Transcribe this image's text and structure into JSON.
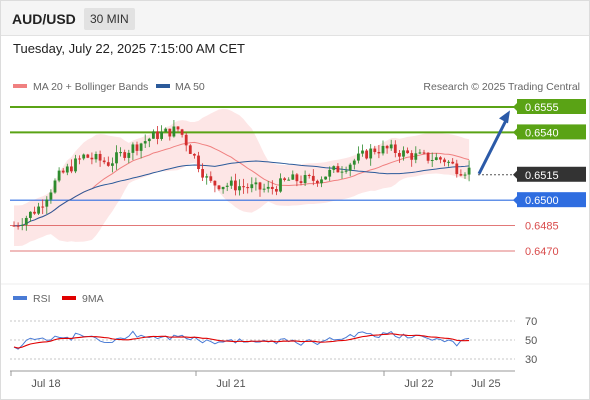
{
  "header": {
    "symbol": "AUD/USD",
    "timeframe": "30 MIN"
  },
  "datetime": "Tuesday, July 22, 2025 7:15:00 AM CET",
  "legend": {
    "ma20_label": "MA 20 + Bollinger Bands",
    "ma20_color": "#f08080",
    "ma50_label": "MA 50",
    "ma50_color": "#2b5a9a",
    "credit": "Research © 2025 Trading Central"
  },
  "rsi_legend": {
    "rsi_label": "RSI",
    "rsi_color": "#4a7bd5",
    "ma_label": "9MA",
    "ma_color": "#e00000"
  },
  "colors": {
    "bull": "#2e8b2e",
    "bear": "#d32f2f",
    "target": "#5aa315",
    "current": "#333333",
    "pivot": "#2f6de0",
    "support": "#d94c4c",
    "arrow": "#2b5aa8",
    "band_fill": "#fde6e6"
  },
  "chart_data": [
    {
      "type": "candlestick",
      "title": "AUD/USD",
      "timeframe": "30 MIN",
      "ylim": [
        0.6445,
        0.6565
      ],
      "x_tick_labels": [
        "Jul 18",
        "Jul 21",
        "Jul 22",
        "Jul 25"
      ],
      "current_price": 0.6515,
      "levels": [
        {
          "label": "0.6555",
          "value": 0.6555,
          "kind": "target"
        },
        {
          "label": "0.6540",
          "value": 0.654,
          "kind": "target"
        },
        {
          "label": "0.6515",
          "value": 0.6515,
          "kind": "current"
        },
        {
          "label": "0.6500",
          "value": 0.65,
          "kind": "pivot"
        },
        {
          "label": "0.6485",
          "value": 0.6485,
          "kind": "support"
        },
        {
          "label": "0.6470",
          "value": 0.647,
          "kind": "support"
        }
      ],
      "forecast_arrow": {
        "from": 0.6515,
        "to": 0.6553
      },
      "series": [
        {
          "name": "MA 20 + Bollinger Bands"
        },
        {
          "name": "MA 50"
        }
      ]
    },
    {
      "type": "line",
      "series": [
        {
          "name": "RSI"
        },
        {
          "name": "9MA"
        }
      ],
      "y_ticks": [
        70,
        50,
        30
      ],
      "ylim": [
        25,
        80
      ]
    }
  ]
}
